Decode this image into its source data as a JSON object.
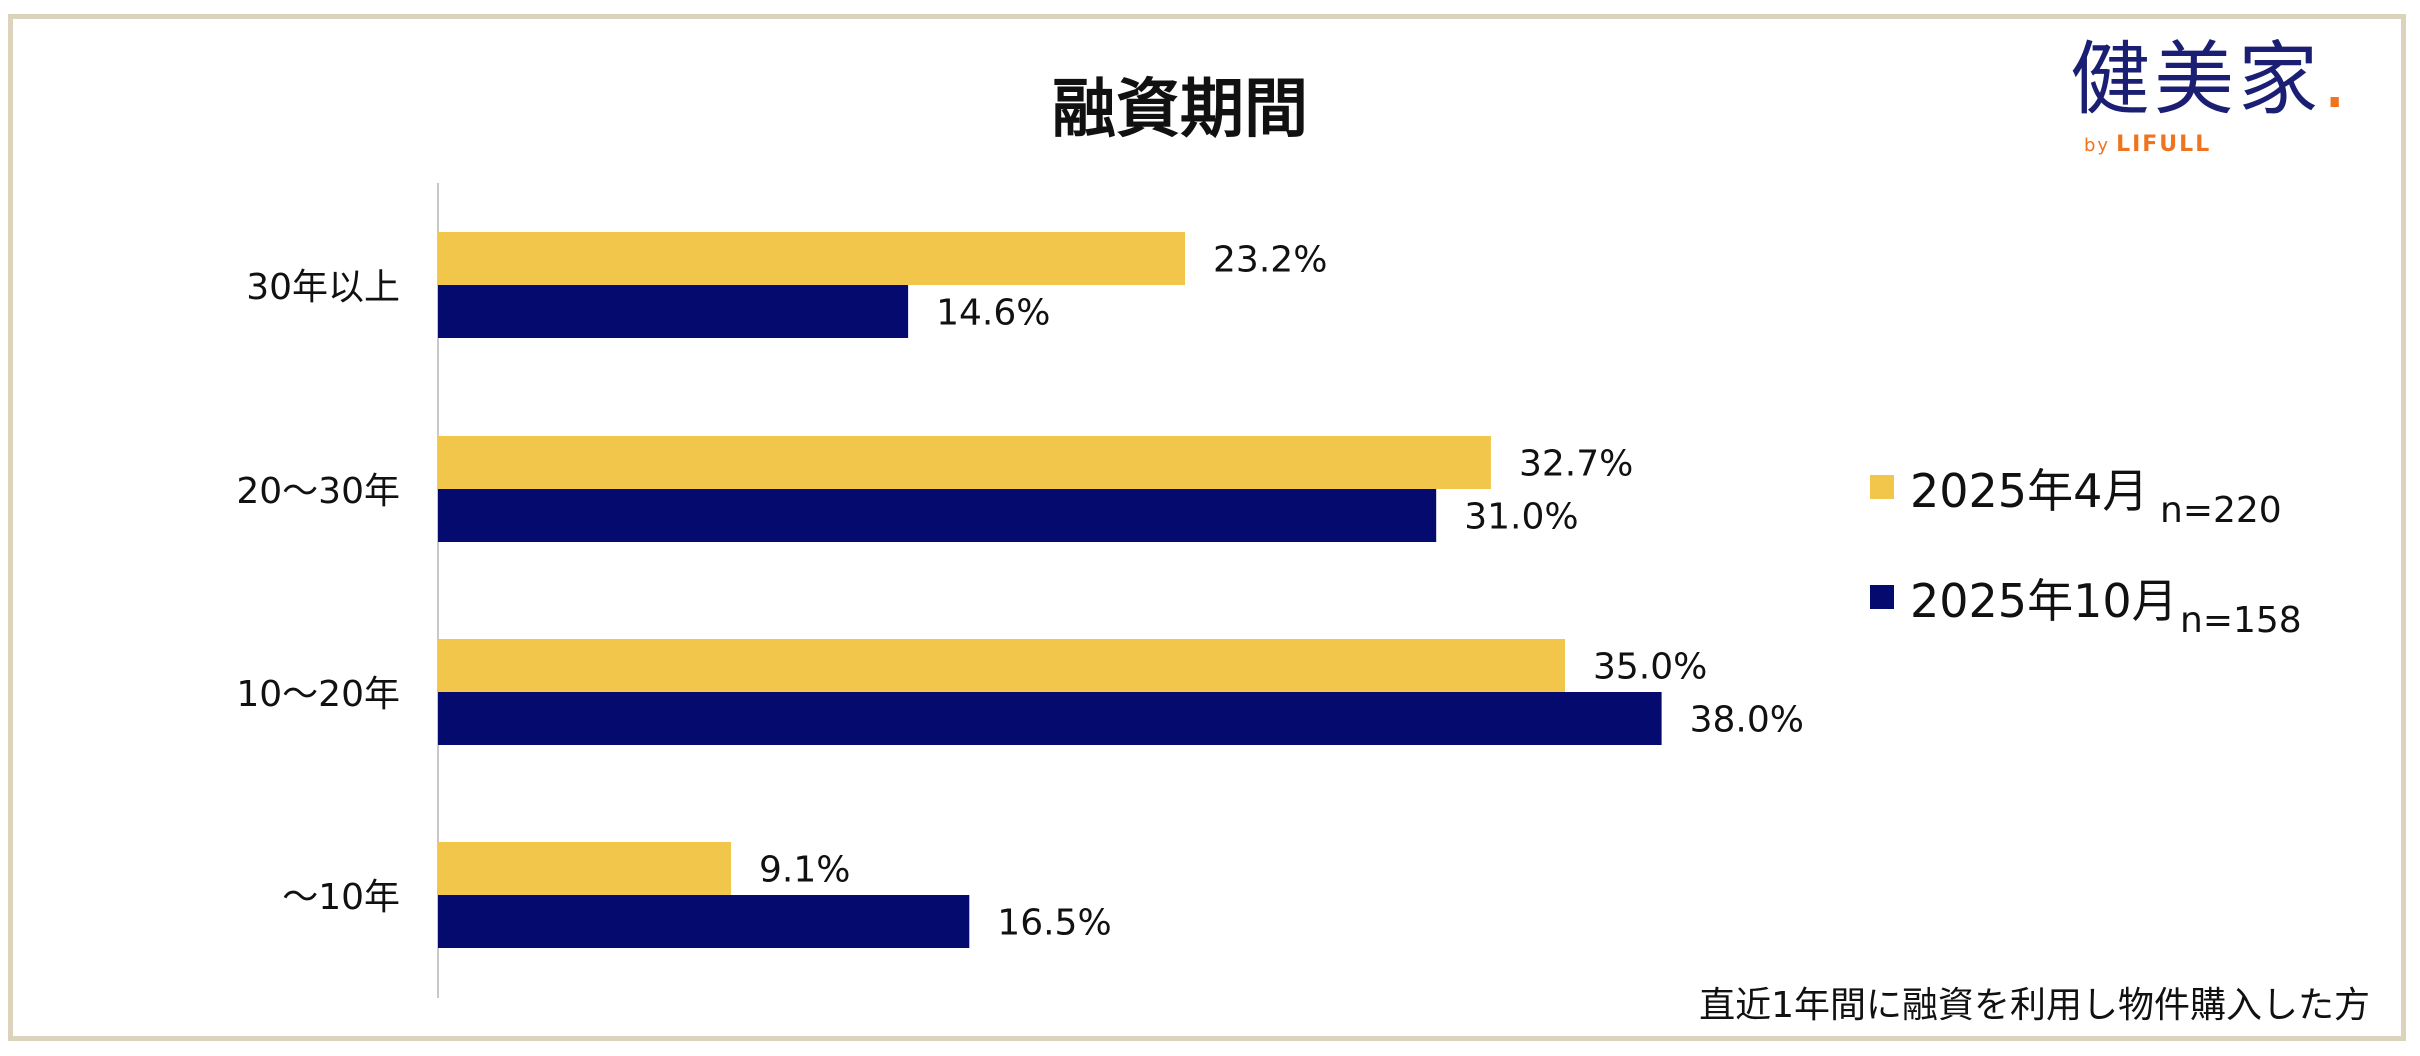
{
  "title": "融資期間",
  "logo": {
    "main": "健美家",
    "dot": ".",
    "by": "by",
    "brand": "LIFULL"
  },
  "footnote": "直近1年間に融資を利用し物件購入した方",
  "colors": {
    "series1": "#f2c64b",
    "series2": "#050a6e",
    "axis": "#c8c8c8"
  },
  "legend": [
    {
      "label": "2025年4月",
      "n": "n=220"
    },
    {
      "label": "2025年10月",
      "n": "n=158"
    }
  ],
  "chart_data": {
    "type": "bar",
    "orientation": "horizontal",
    "categories": [
      "30年以上",
      "20～30年",
      "10～20年",
      "～10年"
    ],
    "series": [
      {
        "name": "2025年4月",
        "values": [
          23.2,
          32.7,
          35.0,
          9.1
        ]
      },
      {
        "name": "2025年10月",
        "values": [
          14.6,
          31.0,
          38.0,
          16.5
        ]
      }
    ],
    "value_labels": [
      [
        "23.2%",
        "32.7%",
        "35.0%",
        "9.1%"
      ],
      [
        "14.6%",
        "31.0%",
        "38.0%",
        "16.5%"
      ]
    ],
    "xlim": [
      0,
      40
    ],
    "grid": false,
    "legend_position": "right"
  }
}
